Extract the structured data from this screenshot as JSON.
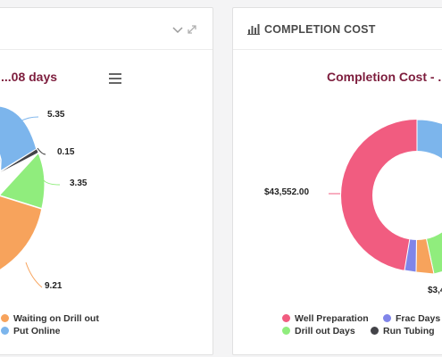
{
  "left_panel": {
    "chart_title": "...08 days",
    "menu_icon": "hamburger-icon",
    "header_icons": [
      "chevron-down-icon",
      "expand-icon"
    ],
    "legend": [
      {
        "label": "Waiting on Drill out",
        "color": "#f7a35c"
      },
      {
        "label": "Put Online",
        "color": "#7cb5ec"
      }
    ],
    "data_labels": [
      "5.35",
      "0.15",
      "3.35",
      "9.21"
    ]
  },
  "right_panel": {
    "header_title": "COMPLETION COST",
    "header_icon": "bar-chart-icon",
    "chart_title": "Completion Cost - ...",
    "legend": [
      {
        "label": "Well Preparation",
        "color": "#f15c80"
      },
      {
        "label": "Frac Days",
        "color": "#8085e9"
      },
      {
        "label": "Drill out Days",
        "color": "#90ed7d"
      },
      {
        "label": "Run Tubing",
        "color": "#434348"
      }
    ],
    "data_labels": [
      "$43,552.00",
      "$3,4..."
    ]
  },
  "chart_data": [
    {
      "type": "pie",
      "title": "...08 days",
      "visible_values": [
        5.35,
        0.15,
        3.35,
        9.21
      ],
      "legend": [
        "Waiting on Drill out",
        "Put Online"
      ]
    },
    {
      "type": "pie",
      "title": "Completion Cost - ...",
      "visible_values": [
        "$43,552.00",
        "$3,4..."
      ],
      "legend": [
        "Well Preparation",
        "Frac Days",
        "Drill out Days",
        "Run Tubing"
      ]
    }
  ]
}
